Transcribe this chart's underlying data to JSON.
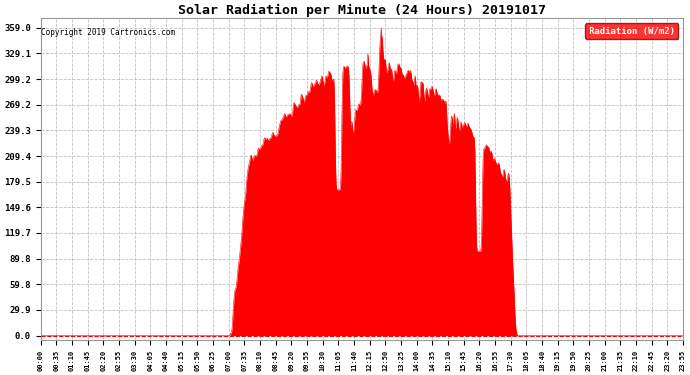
{
  "title": "Solar Radiation per Minute (24 Hours) 20191017",
  "copyright_text": "Copyright 2019 Cartronics.com",
  "legend_label": "Radiation (W/m2)",
  "fill_color": "#FF0000",
  "line_color": "#FF0000",
  "background_color": "#FFFFFF",
  "grid_color": "#AAAAAA",
  "y_ticks": [
    0.0,
    29.9,
    59.8,
    89.8,
    119.7,
    149.6,
    179.5,
    209.4,
    239.3,
    269.2,
    299.2,
    329.1,
    359.0
  ],
  "x_tick_labels": [
    "00:00",
    "00:35",
    "01:10",
    "01:45",
    "02:20",
    "02:55",
    "03:30",
    "04:05",
    "04:40",
    "05:15",
    "05:50",
    "06:25",
    "07:00",
    "07:35",
    "08:10",
    "08:45",
    "09:20",
    "09:55",
    "10:30",
    "11:05",
    "11:40",
    "12:15",
    "12:50",
    "13:25",
    "14:00",
    "14:35",
    "15:10",
    "15:45",
    "16:20",
    "16:55",
    "17:30",
    "18:05",
    "18:40",
    "19:15",
    "19:50",
    "20:25",
    "21:00",
    "21:35",
    "22:10",
    "22:45",
    "23:20",
    "23:55"
  ]
}
